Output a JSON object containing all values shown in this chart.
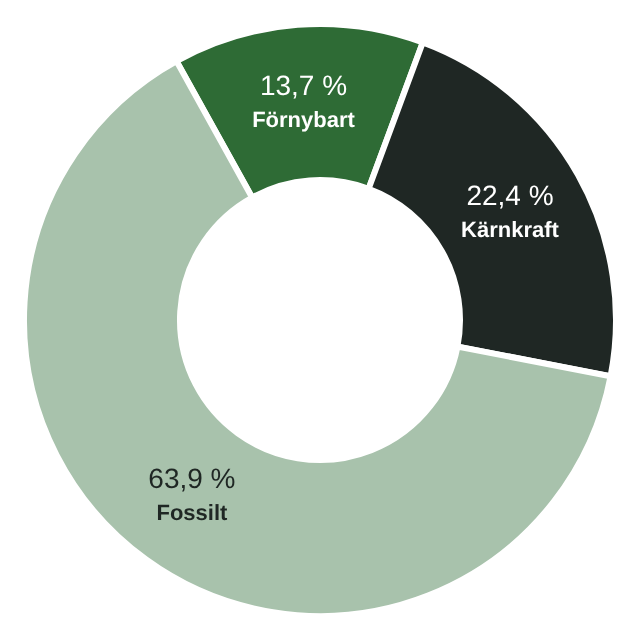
{
  "chart_data": {
    "type": "donut",
    "categories": [
      "Förnybart",
      "Kärnkraft",
      "Fossilt"
    ],
    "values": [
      13.7,
      22.4,
      63.9
    ],
    "value_labels": [
      "13,7 %",
      "22,4 %",
      "63,9 %"
    ],
    "colors": [
      "#2e6b35",
      "#1f2724",
      "#a8c2ac"
    ]
  }
}
